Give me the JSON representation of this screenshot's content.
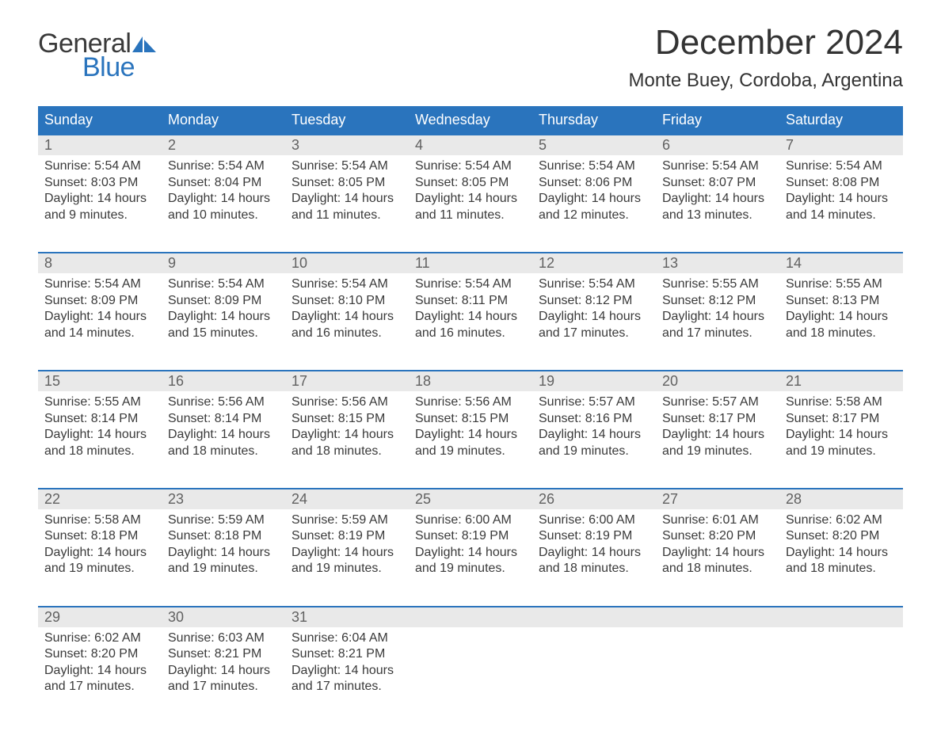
{
  "logo": {
    "word1": "General",
    "word2": "Blue",
    "color_blue": "#2a74bd",
    "color_dark": "#3a3a3a"
  },
  "title": "December 2024",
  "location": "Monte Buey, Cordoba, Argentina",
  "weekday_header_bg": "#2a74bd",
  "weekday_header_fg": "#ffffff",
  "daynum_band_bg": "#e9e9e9",
  "week_border_color": "#2a74bd",
  "body_bg": "#ffffff",
  "text_color": "#3a3a3a",
  "weekdays": [
    "Sunday",
    "Monday",
    "Tuesday",
    "Wednesday",
    "Thursday",
    "Friday",
    "Saturday"
  ],
  "weeks": [
    {
      "days": [
        {
          "n": "1",
          "sunrise": "Sunrise: 5:54 AM",
          "sunset": "Sunset: 8:03 PM",
          "day1": "Daylight: 14 hours",
          "day2": "and 9 minutes."
        },
        {
          "n": "2",
          "sunrise": "Sunrise: 5:54 AM",
          "sunset": "Sunset: 8:04 PM",
          "day1": "Daylight: 14 hours",
          "day2": "and 10 minutes."
        },
        {
          "n": "3",
          "sunrise": "Sunrise: 5:54 AM",
          "sunset": "Sunset: 8:05 PM",
          "day1": "Daylight: 14 hours",
          "day2": "and 11 minutes."
        },
        {
          "n": "4",
          "sunrise": "Sunrise: 5:54 AM",
          "sunset": "Sunset: 8:05 PM",
          "day1": "Daylight: 14 hours",
          "day2": "and 11 minutes."
        },
        {
          "n": "5",
          "sunrise": "Sunrise: 5:54 AM",
          "sunset": "Sunset: 8:06 PM",
          "day1": "Daylight: 14 hours",
          "day2": "and 12 minutes."
        },
        {
          "n": "6",
          "sunrise": "Sunrise: 5:54 AM",
          "sunset": "Sunset: 8:07 PM",
          "day1": "Daylight: 14 hours",
          "day2": "and 13 minutes."
        },
        {
          "n": "7",
          "sunrise": "Sunrise: 5:54 AM",
          "sunset": "Sunset: 8:08 PM",
          "day1": "Daylight: 14 hours",
          "day2": "and 14 minutes."
        }
      ]
    },
    {
      "days": [
        {
          "n": "8",
          "sunrise": "Sunrise: 5:54 AM",
          "sunset": "Sunset: 8:09 PM",
          "day1": "Daylight: 14 hours",
          "day2": "and 14 minutes."
        },
        {
          "n": "9",
          "sunrise": "Sunrise: 5:54 AM",
          "sunset": "Sunset: 8:09 PM",
          "day1": "Daylight: 14 hours",
          "day2": "and 15 minutes."
        },
        {
          "n": "10",
          "sunrise": "Sunrise: 5:54 AM",
          "sunset": "Sunset: 8:10 PM",
          "day1": "Daylight: 14 hours",
          "day2": "and 16 minutes."
        },
        {
          "n": "11",
          "sunrise": "Sunrise: 5:54 AM",
          "sunset": "Sunset: 8:11 PM",
          "day1": "Daylight: 14 hours",
          "day2": "and 16 minutes."
        },
        {
          "n": "12",
          "sunrise": "Sunrise: 5:54 AM",
          "sunset": "Sunset: 8:12 PM",
          "day1": "Daylight: 14 hours",
          "day2": "and 17 minutes."
        },
        {
          "n": "13",
          "sunrise": "Sunrise: 5:55 AM",
          "sunset": "Sunset: 8:12 PM",
          "day1": "Daylight: 14 hours",
          "day2": "and 17 minutes."
        },
        {
          "n": "14",
          "sunrise": "Sunrise: 5:55 AM",
          "sunset": "Sunset: 8:13 PM",
          "day1": "Daylight: 14 hours",
          "day2": "and 18 minutes."
        }
      ]
    },
    {
      "days": [
        {
          "n": "15",
          "sunrise": "Sunrise: 5:55 AM",
          "sunset": "Sunset: 8:14 PM",
          "day1": "Daylight: 14 hours",
          "day2": "and 18 minutes."
        },
        {
          "n": "16",
          "sunrise": "Sunrise: 5:56 AM",
          "sunset": "Sunset: 8:14 PM",
          "day1": "Daylight: 14 hours",
          "day2": "and 18 minutes."
        },
        {
          "n": "17",
          "sunrise": "Sunrise: 5:56 AM",
          "sunset": "Sunset: 8:15 PM",
          "day1": "Daylight: 14 hours",
          "day2": "and 18 minutes."
        },
        {
          "n": "18",
          "sunrise": "Sunrise: 5:56 AM",
          "sunset": "Sunset: 8:15 PM",
          "day1": "Daylight: 14 hours",
          "day2": "and 19 minutes."
        },
        {
          "n": "19",
          "sunrise": "Sunrise: 5:57 AM",
          "sunset": "Sunset: 8:16 PM",
          "day1": "Daylight: 14 hours",
          "day2": "and 19 minutes."
        },
        {
          "n": "20",
          "sunrise": "Sunrise: 5:57 AM",
          "sunset": "Sunset: 8:17 PM",
          "day1": "Daylight: 14 hours",
          "day2": "and 19 minutes."
        },
        {
          "n": "21",
          "sunrise": "Sunrise: 5:58 AM",
          "sunset": "Sunset: 8:17 PM",
          "day1": "Daylight: 14 hours",
          "day2": "and 19 minutes."
        }
      ]
    },
    {
      "days": [
        {
          "n": "22",
          "sunrise": "Sunrise: 5:58 AM",
          "sunset": "Sunset: 8:18 PM",
          "day1": "Daylight: 14 hours",
          "day2": "and 19 minutes."
        },
        {
          "n": "23",
          "sunrise": "Sunrise: 5:59 AM",
          "sunset": "Sunset: 8:18 PM",
          "day1": "Daylight: 14 hours",
          "day2": "and 19 minutes."
        },
        {
          "n": "24",
          "sunrise": "Sunrise: 5:59 AM",
          "sunset": "Sunset: 8:19 PM",
          "day1": "Daylight: 14 hours",
          "day2": "and 19 minutes."
        },
        {
          "n": "25",
          "sunrise": "Sunrise: 6:00 AM",
          "sunset": "Sunset: 8:19 PM",
          "day1": "Daylight: 14 hours",
          "day2": "and 19 minutes."
        },
        {
          "n": "26",
          "sunrise": "Sunrise: 6:00 AM",
          "sunset": "Sunset: 8:19 PM",
          "day1": "Daylight: 14 hours",
          "day2": "and 18 minutes."
        },
        {
          "n": "27",
          "sunrise": "Sunrise: 6:01 AM",
          "sunset": "Sunset: 8:20 PM",
          "day1": "Daylight: 14 hours",
          "day2": "and 18 minutes."
        },
        {
          "n": "28",
          "sunrise": "Sunrise: 6:02 AM",
          "sunset": "Sunset: 8:20 PM",
          "day1": "Daylight: 14 hours",
          "day2": "and 18 minutes."
        }
      ]
    },
    {
      "days": [
        {
          "n": "29",
          "sunrise": "Sunrise: 6:02 AM",
          "sunset": "Sunset: 8:20 PM",
          "day1": "Daylight: 14 hours",
          "day2": "and 17 minutes."
        },
        {
          "n": "30",
          "sunrise": "Sunrise: 6:03 AM",
          "sunset": "Sunset: 8:21 PM",
          "day1": "Daylight: 14 hours",
          "day2": "and 17 minutes."
        },
        {
          "n": "31",
          "sunrise": "Sunrise: 6:04 AM",
          "sunset": "Sunset: 8:21 PM",
          "day1": "Daylight: 14 hours",
          "day2": "and 17 minutes."
        },
        {
          "n": "",
          "sunrise": "",
          "sunset": "",
          "day1": "",
          "day2": ""
        },
        {
          "n": "",
          "sunrise": "",
          "sunset": "",
          "day1": "",
          "day2": ""
        },
        {
          "n": "",
          "sunrise": "",
          "sunset": "",
          "day1": "",
          "day2": ""
        },
        {
          "n": "",
          "sunrise": "",
          "sunset": "",
          "day1": "",
          "day2": ""
        }
      ]
    }
  ]
}
